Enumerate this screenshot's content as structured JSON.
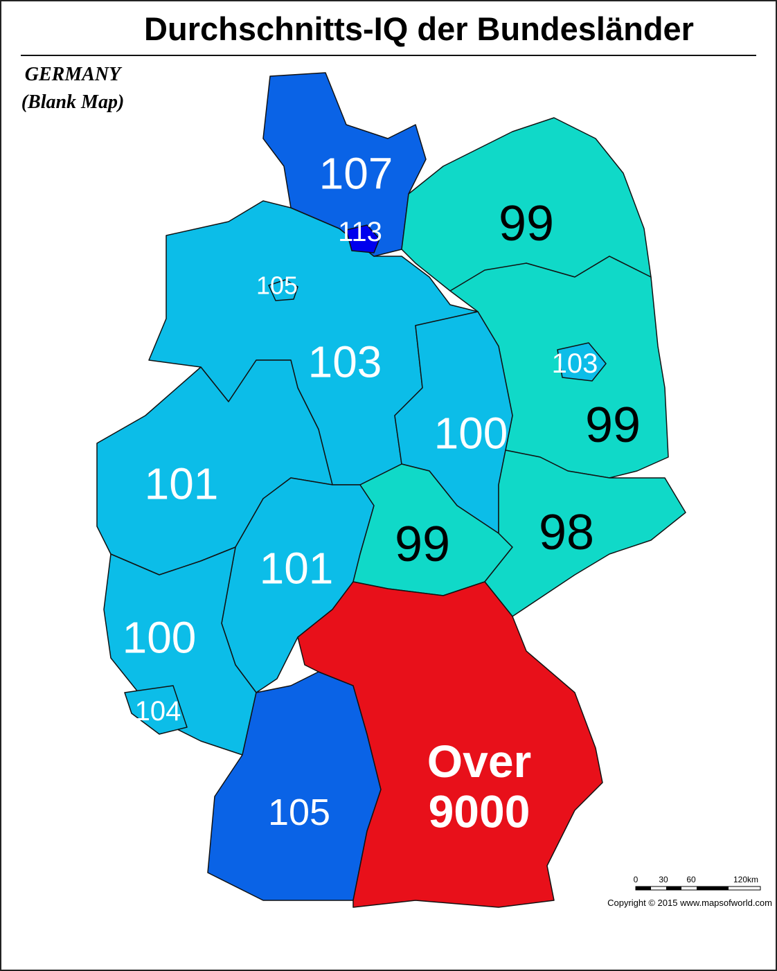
{
  "header": {
    "title": "Durchschnitts-IQ der Bundesländer"
  },
  "caption": {
    "line1": "GERMANY",
    "line2": "(Blank Map)"
  },
  "regions": [
    {
      "lines": [
        "103"
      ],
      "color": "#0cbde8",
      "text_color": "#ffffff"
    },
    {
      "lines": [
        "105"
      ],
      "color": "#0cbde8",
      "text_color": "#ffffff"
    },
    {
      "lines": [
        "107"
      ],
      "color": "#0a63e6",
      "text_color": "#ffffff"
    },
    {
      "lines": [
        "113"
      ],
      "color": "#0000ee",
      "text_color": "#ffffff"
    },
    {
      "lines": [
        "99"
      ],
      "color": "#10d9c8",
      "text_color": "#000000"
    },
    {
      "lines": [
        "99"
      ],
      "color": "#10d9c8",
      "text_color": "#000000"
    },
    {
      "lines": [
        "103"
      ],
      "color": "#0cbde8",
      "text_color": "#ffffff"
    },
    {
      "lines": [
        "100"
      ],
      "color": "#0cbde8",
      "text_color": "#ffffff"
    },
    {
      "lines": [
        "101"
      ],
      "color": "#0cbde8",
      "text_color": "#ffffff"
    },
    {
      "lines": [
        "101"
      ],
      "color": "#0cbde8",
      "text_color": "#ffffff"
    },
    {
      "lines": [
        "99"
      ],
      "color": "#10d9c8",
      "text_color": "#000000"
    },
    {
      "lines": [
        "98"
      ],
      "color": "#10d9c8",
      "text_color": "#000000"
    },
    {
      "lines": [
        "100"
      ],
      "color": "#0cbde8",
      "text_color": "#ffffff"
    },
    {
      "lines": [
        "104"
      ],
      "color": "#0cbde8",
      "text_color": "#ffffff"
    },
    {
      "lines": [
        "105"
      ],
      "color": "#0a63e6",
      "text_color": "#ffffff"
    },
    {
      "lines": [
        "Over",
        "9000"
      ],
      "color": "#e8101a",
      "text_color": "#ffffff"
    }
  ],
  "scale": {
    "labels": [
      "0",
      "30",
      "60",
      "120km"
    ]
  },
  "copyright": "Copyright © 2015  www.mapsofworld.com"
}
